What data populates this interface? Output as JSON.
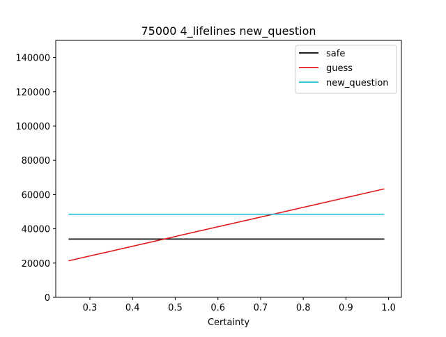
{
  "chart_data": {
    "type": "line",
    "title": "75000 4_lifelines new_question",
    "xlabel": "Certainty",
    "ylabel": "",
    "xlim": [
      0.22,
      1.03
    ],
    "ylim": [
      0,
      150000
    ],
    "xticks": [
      0.3,
      0.4,
      0.5,
      0.6,
      0.7,
      0.8,
      0.9,
      1.0
    ],
    "xtick_labels": [
      "0.3",
      "0.4",
      "0.5",
      "0.6",
      "0.7",
      "0.8",
      "0.9",
      "1.0"
    ],
    "yticks": [
      0,
      20000,
      40000,
      60000,
      80000,
      100000,
      120000,
      140000
    ],
    "ytick_labels": [
      "0",
      "20000",
      "40000",
      "60000",
      "80000",
      "100000",
      "120000",
      "140000"
    ],
    "grid": false,
    "legend_position": "top-right",
    "series": [
      {
        "name": "safe",
        "color": "#000000",
        "x": [
          0.25,
          0.99
        ],
        "y": [
          34000,
          34000
        ]
      },
      {
        "name": "guess",
        "color": "#e31a1c",
        "x": [
          0.25,
          0.99
        ],
        "y": [
          21300,
          63300
        ]
      },
      {
        "name": "new_question",
        "color": "#17becf",
        "x": [
          0.25,
          0.99
        ],
        "y": [
          48500,
          48500
        ]
      }
    ]
  }
}
